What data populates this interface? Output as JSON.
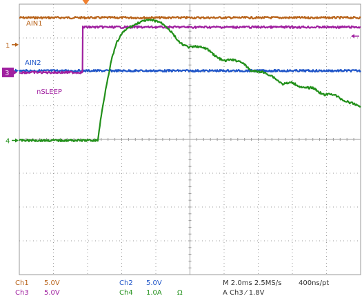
{
  "chart_data": {
    "type": "line",
    "grid": true,
    "x_divisions": 10,
    "y_divisions": 8,
    "trigger_marker_color": "#f08030",
    "series": [
      {
        "id": "ch1",
        "name": "AIN1",
        "color": "#b8631a",
        "marker": "1",
        "x": [
          0,
          10
        ],
        "y": [
          3.6,
          3.6
        ]
      },
      {
        "id": "ch2",
        "name": "AIN2",
        "color": "#1f55c8",
        "marker": "2",
        "x": [
          0,
          10
        ],
        "y": [
          2.03,
          2.03
        ]
      },
      {
        "id": "ch3",
        "name": "nSLEEP",
        "color": "#a020a0",
        "marker": "3",
        "x": [
          0,
          1.85,
          1.86,
          10
        ],
        "y": [
          1.98,
          1.98,
          3.32,
          3.32
        ]
      },
      {
        "id": "ch4",
        "name": "",
        "color": "#22901a",
        "marker": "4",
        "x": [
          0,
          2.3,
          2.4,
          2.55,
          2.7,
          2.85,
          3.0,
          3.15,
          3.3,
          3.5,
          3.7,
          3.9,
          4.1,
          4.3,
          4.5,
          4.7,
          4.9,
          5.0,
          5.2,
          5.5,
          5.8,
          6.0,
          6.2,
          6.5,
          6.8,
          7.1,
          7.4,
          7.7,
          8.0,
          8.3,
          8.6,
          8.9,
          9.2,
          9.5,
          9.8,
          10
        ],
        "y": [
          -0.03,
          -0.03,
          0.7,
          1.6,
          2.35,
          2.85,
          3.12,
          3.27,
          3.35,
          3.45,
          3.52,
          3.52,
          3.48,
          3.35,
          3.12,
          2.85,
          2.75,
          2.72,
          2.75,
          2.68,
          2.42,
          2.32,
          2.36,
          2.3,
          2.02,
          2.0,
          1.88,
          1.64,
          1.68,
          1.52,
          1.53,
          1.32,
          1.34,
          1.15,
          1.05,
          0.98
        ]
      }
    ],
    "ref_arrow_color": "#f08030"
  },
  "status": {
    "ch1_label": "Ch1",
    "ch1_scale": "5.0V",
    "ch3_label": "Ch3",
    "ch3_scale": "5.0V",
    "ch2_label": "Ch2",
    "ch2_scale": "5.0V",
    "ch4_label": "Ch4",
    "ch4_scale": "1.0A",
    "ch4_unit": "Ω",
    "timebase": "M 2.0ms 2.5MS/s",
    "resolution": "400ns/pt",
    "trigger": "A  Ch3  ⁄  1.8V"
  },
  "colors": {
    "ch1": "#b8631a",
    "ch2": "#1f55c8",
    "ch3": "#a020a0",
    "ch4": "#22901a",
    "grid": "#9a9a9a",
    "status_ch2": "#1f55c8"
  }
}
